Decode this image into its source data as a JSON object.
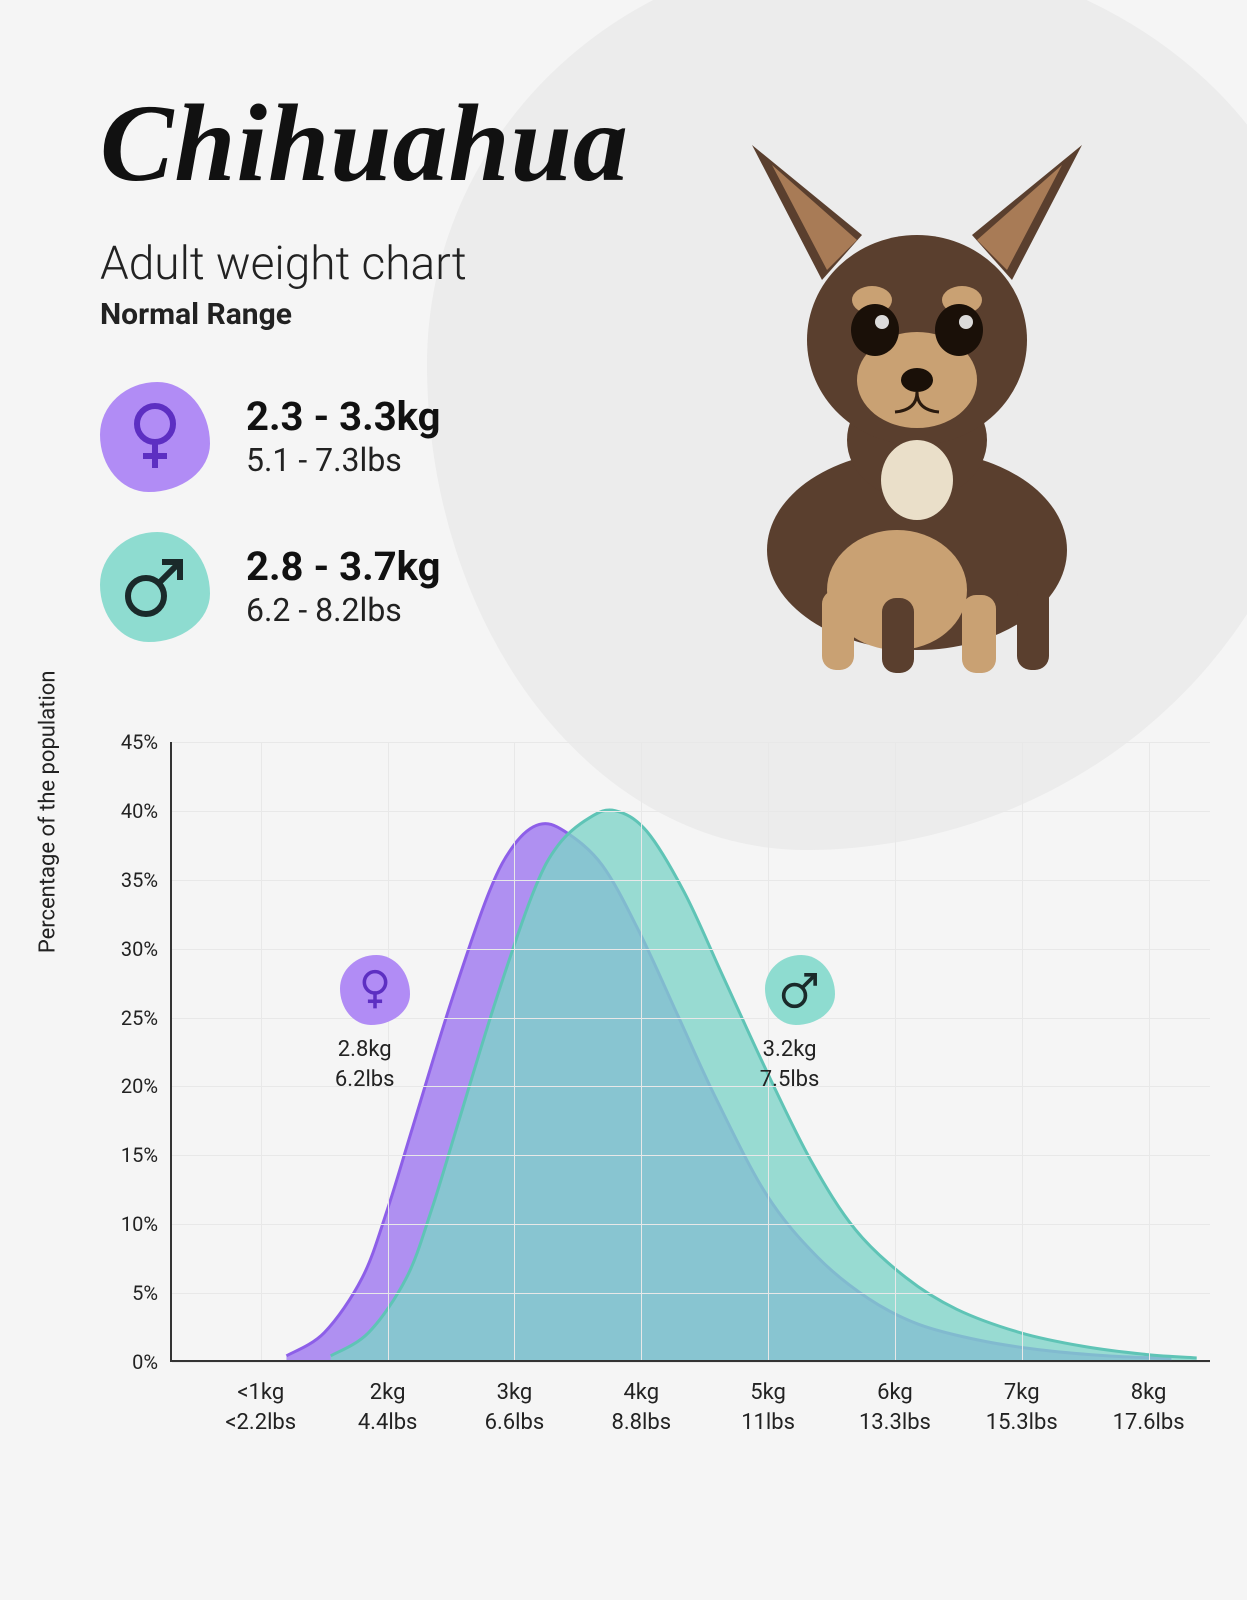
{
  "header": {
    "title": "Chihuahua",
    "subtitle": "Adult weight chart",
    "subtitle2": "Normal Range"
  },
  "female": {
    "kg": "2.3 - 3.3kg",
    "lbs": "5.1 - 7.3lbs",
    "badge_color": "#b18cf5",
    "symbol_color": "#5d2fc2"
  },
  "male": {
    "kg": "2.8 - 3.7kg",
    "lbs": "6.2 - 8.2lbs",
    "badge_color": "#8edcd0",
    "symbol_color": "#1a2a2a"
  },
  "chart": {
    "ylabel": "Percentage of the population",
    "ylim_max": 45,
    "yticks": [
      0,
      5,
      10,
      15,
      20,
      25,
      30,
      35,
      40,
      45
    ],
    "xticks": [
      {
        "kg": "<1kg",
        "lbs": "<2.2lbs",
        "x": 1
      },
      {
        "kg": "2kg",
        "lbs": "4.4lbs",
        "x": 2
      },
      {
        "kg": "3kg",
        "lbs": "6.6lbs",
        "x": 3
      },
      {
        "kg": "4kg",
        "lbs": "8.8lbs",
        "x": 4
      },
      {
        "kg": "5kg",
        "lbs": "11lbs",
        "x": 5
      },
      {
        "kg": "6kg",
        "lbs": "13.3lbs",
        "x": 6
      },
      {
        "kg": "7kg",
        "lbs": "15.3lbs",
        "x": 7
      },
      {
        "kg": "8kg",
        "lbs": "17.6lbs",
        "x": 8
      }
    ],
    "x_min": 0.3,
    "x_max": 8.5,
    "female_curve": {
      "fill": "#a07af0",
      "fill_opacity": 0.82,
      "stroke": "#8d5fe8",
      "points": [
        [
          1.2,
          0.3
        ],
        [
          1.5,
          2
        ],
        [
          1.8,
          6
        ],
        [
          2.0,
          11
        ],
        [
          2.2,
          17
        ],
        [
          2.5,
          26
        ],
        [
          2.8,
          34
        ],
        [
          3.0,
          37.5
        ],
        [
          3.2,
          39
        ],
        [
          3.4,
          38.5
        ],
        [
          3.7,
          36
        ],
        [
          4.0,
          31
        ],
        [
          4.3,
          25
        ],
        [
          4.6,
          19
        ],
        [
          5.0,
          12
        ],
        [
          5.4,
          7.5
        ],
        [
          5.8,
          4.5
        ],
        [
          6.2,
          2.6
        ],
        [
          6.7,
          1.4
        ],
        [
          7.2,
          0.7
        ],
        [
          7.7,
          0.3
        ],
        [
          8.2,
          0.1
        ]
      ],
      "badge_x": 1.9,
      "badge_y": 27,
      "label_kg": "2.8kg",
      "label_lbs": "6.2lbs"
    },
    "male_curve": {
      "fill": "#7dd4c8",
      "fill_opacity": 0.78,
      "stroke": "#5fc4b6",
      "points": [
        [
          1.55,
          0.3
        ],
        [
          1.85,
          2
        ],
        [
          2.15,
          6
        ],
        [
          2.35,
          11
        ],
        [
          2.55,
          17
        ],
        [
          2.85,
          26
        ],
        [
          3.15,
          34
        ],
        [
          3.35,
          37.5
        ],
        [
          3.6,
          39.5
        ],
        [
          3.8,
          40
        ],
        [
          4.05,
          38.5
        ],
        [
          4.35,
          34
        ],
        [
          4.65,
          28
        ],
        [
          5.0,
          21
        ],
        [
          5.35,
          14.5
        ],
        [
          5.7,
          9.5
        ],
        [
          6.1,
          6
        ],
        [
          6.5,
          3.7
        ],
        [
          7.0,
          2.0
        ],
        [
          7.5,
          1.0
        ],
        [
          8.0,
          0.4
        ],
        [
          8.4,
          0.15
        ]
      ],
      "badge_x": 5.25,
      "badge_y": 27,
      "label_kg": "3.2kg",
      "label_lbs": "7.5lbs"
    }
  },
  "colors": {
    "background": "#f5f5f5",
    "blob": "#ececec",
    "grid": "#e8e8e8",
    "axis": "#333333",
    "text": "#222222"
  }
}
